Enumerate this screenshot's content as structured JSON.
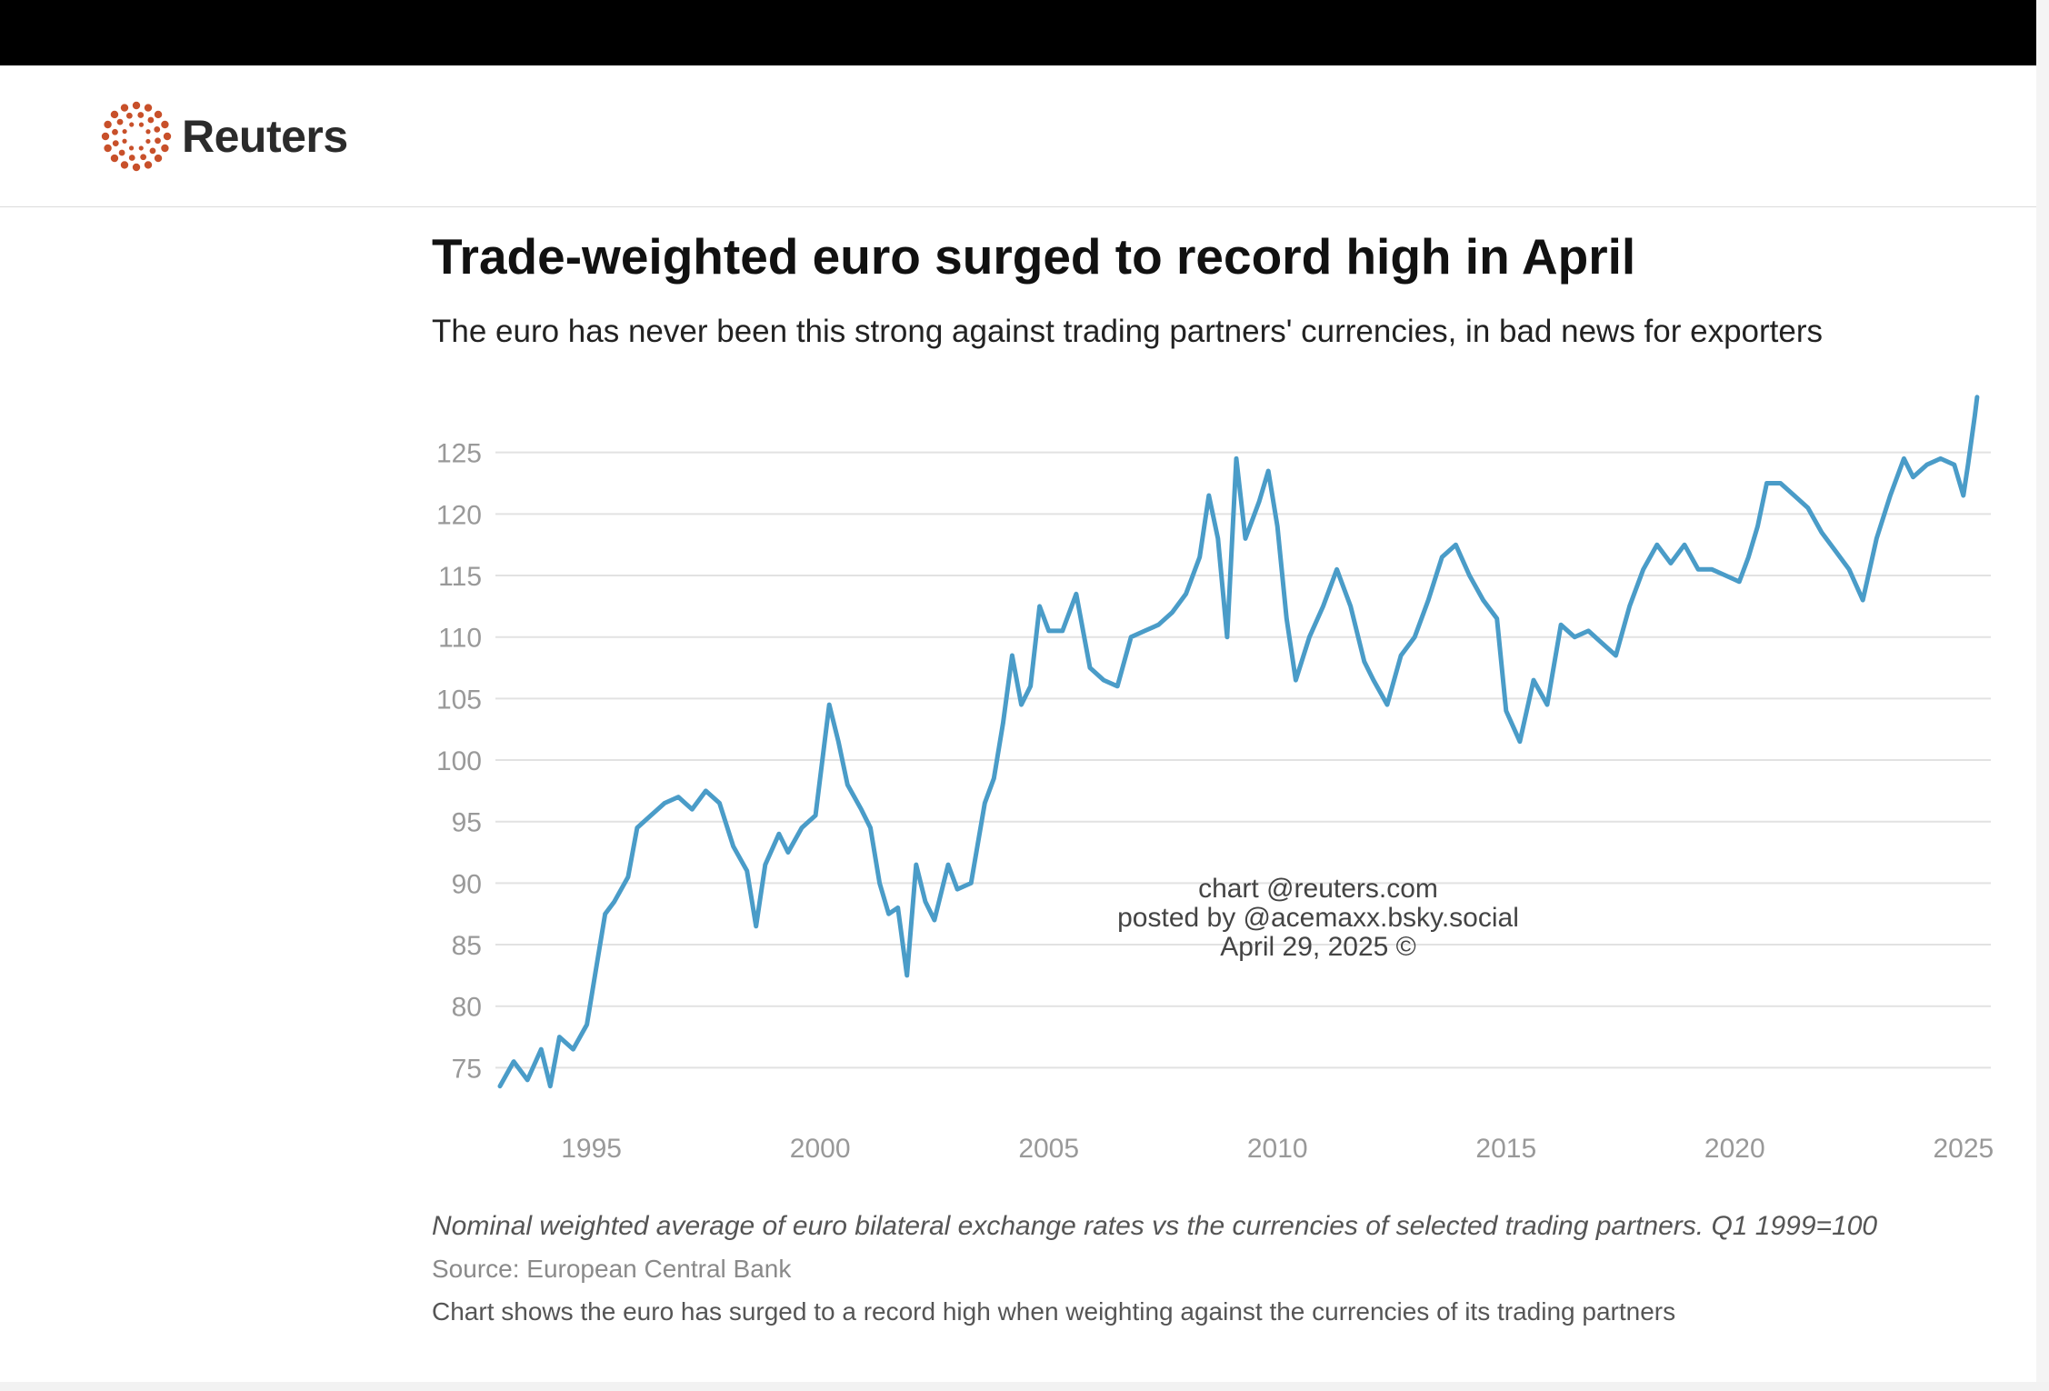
{
  "brand": {
    "name": "Reuters",
    "logo_color": "#c8502a"
  },
  "colors": {
    "line": "#4a9cc8",
    "grid": "#e2e2e2",
    "tick": "#999999"
  },
  "chart_data": {
    "type": "line",
    "title": "Trade-weighted euro surged to record high in April",
    "subtitle": "The euro has never been this strong against trading partners' currencies, in bad news for exporters",
    "xlabel": "",
    "ylabel": "",
    "x_ticks": [
      1995,
      2000,
      2005,
      2010,
      2015,
      2020,
      2025
    ],
    "y_ticks": [
      75,
      80,
      85,
      90,
      95,
      100,
      105,
      110,
      115,
      120,
      125
    ],
    "xlim": [
      1993.0,
      2025.5
    ],
    "ylim": [
      72,
      130
    ],
    "grid": "horizontal",
    "series": [
      {
        "values": [
          [
            1993.0,
            73.5
          ],
          [
            1993.3,
            75.5
          ],
          [
            1993.6,
            74.0
          ],
          [
            1993.9,
            76.5
          ],
          [
            1994.1,
            73.5
          ],
          [
            1994.3,
            77.5
          ],
          [
            1994.6,
            76.5
          ],
          [
            1994.9,
            78.5
          ],
          [
            1995.1,
            83.0
          ],
          [
            1995.3,
            87.5
          ],
          [
            1995.5,
            88.5
          ],
          [
            1995.8,
            90.5
          ],
          [
            1996.0,
            94.5
          ],
          [
            1996.3,
            95.5
          ],
          [
            1996.6,
            96.5
          ],
          [
            1996.9,
            97.0
          ],
          [
            1997.2,
            96.0
          ],
          [
            1997.5,
            97.5
          ],
          [
            1997.8,
            96.5
          ],
          [
            1998.1,
            93.0
          ],
          [
            1998.4,
            91.0
          ],
          [
            1998.6,
            86.5
          ],
          [
            1998.8,
            91.5
          ],
          [
            1999.1,
            94.0
          ],
          [
            1999.3,
            92.5
          ],
          [
            1999.6,
            94.5
          ],
          [
            1999.9,
            95.5
          ],
          [
            2000.2,
            104.5
          ],
          [
            2000.4,
            101.5
          ],
          [
            2000.6,
            98.0
          ],
          [
            2000.9,
            96.0
          ],
          [
            2001.1,
            94.5
          ],
          [
            2001.3,
            90.0
          ],
          [
            2001.5,
            87.5
          ],
          [
            2001.7,
            88.0
          ],
          [
            2001.9,
            82.5
          ],
          [
            2002.1,
            91.5
          ],
          [
            2002.3,
            88.5
          ],
          [
            2002.5,
            87.0
          ],
          [
            2002.8,
            91.5
          ],
          [
            2003.0,
            89.5
          ],
          [
            2003.3,
            90.0
          ],
          [
            2003.6,
            96.5
          ],
          [
            2003.8,
            98.5
          ],
          [
            2004.0,
            103.0
          ],
          [
            2004.2,
            108.5
          ],
          [
            2004.4,
            104.5
          ],
          [
            2004.6,
            106.0
          ],
          [
            2004.8,
            112.5
          ],
          [
            2005.0,
            110.5
          ],
          [
            2005.3,
            110.5
          ],
          [
            2005.6,
            113.5
          ],
          [
            2005.9,
            107.5
          ],
          [
            2006.2,
            106.5
          ],
          [
            2006.5,
            106.0
          ],
          [
            2006.8,
            110.0
          ],
          [
            2007.1,
            110.5
          ],
          [
            2007.4,
            111.0
          ],
          [
            2007.7,
            112.0
          ],
          [
            2008.0,
            113.5
          ],
          [
            2008.3,
            116.5
          ],
          [
            2008.5,
            121.5
          ],
          [
            2008.7,
            118.0
          ],
          [
            2008.9,
            110.0
          ],
          [
            2009.1,
            124.5
          ],
          [
            2009.3,
            118.0
          ],
          [
            2009.6,
            121.0
          ],
          [
            2009.8,
            123.5
          ],
          [
            2010.0,
            119.0
          ],
          [
            2010.2,
            111.5
          ],
          [
            2010.4,
            106.5
          ],
          [
            2010.7,
            110.0
          ],
          [
            2011.0,
            112.5
          ],
          [
            2011.3,
            115.5
          ],
          [
            2011.6,
            112.5
          ],
          [
            2011.9,
            108.0
          ],
          [
            2012.1,
            106.5
          ],
          [
            2012.4,
            104.5
          ],
          [
            2012.7,
            108.5
          ],
          [
            2013.0,
            110.0
          ],
          [
            2013.3,
            113.0
          ],
          [
            2013.6,
            116.5
          ],
          [
            2013.9,
            117.5
          ],
          [
            2014.2,
            115.0
          ],
          [
            2014.5,
            113.0
          ],
          [
            2014.8,
            111.5
          ],
          [
            2015.0,
            104.0
          ],
          [
            2015.3,
            101.5
          ],
          [
            2015.6,
            106.5
          ],
          [
            2015.9,
            104.5
          ],
          [
            2016.2,
            111.0
          ],
          [
            2016.5,
            110.0
          ],
          [
            2016.8,
            110.5
          ],
          [
            2017.1,
            109.5
          ],
          [
            2017.4,
            108.5
          ],
          [
            2017.7,
            112.5
          ],
          [
            2018.0,
            115.5
          ],
          [
            2018.3,
            117.5
          ],
          [
            2018.6,
            116.0
          ],
          [
            2018.9,
            117.5
          ],
          [
            2019.2,
            115.5
          ],
          [
            2019.5,
            115.5
          ],
          [
            2019.8,
            115.0
          ],
          [
            2020.1,
            114.5
          ],
          [
            2020.3,
            116.5
          ],
          [
            2020.5,
            119.0
          ],
          [
            2020.7,
            122.5
          ],
          [
            2021.0,
            122.5
          ],
          [
            2021.3,
            121.5
          ],
          [
            2021.6,
            120.5
          ],
          [
            2021.9,
            118.5
          ],
          [
            2022.2,
            117.0
          ],
          [
            2022.5,
            115.5
          ],
          [
            2022.8,
            113.0
          ],
          [
            2023.1,
            118.0
          ],
          [
            2023.4,
            121.5
          ],
          [
            2023.7,
            124.5
          ],
          [
            2023.9,
            123.0
          ],
          [
            2024.2,
            124.0
          ],
          [
            2024.5,
            124.5
          ],
          [
            2024.8,
            124.0
          ],
          [
            2025.0,
            121.5
          ],
          [
            2025.1,
            124.0
          ],
          [
            2025.25,
            128.0
          ],
          [
            2025.3,
            129.5
          ]
        ]
      }
    ]
  },
  "watermark": {
    "line1": "chart @reuters.com",
    "line2": "posted by @acemaxx.bsky.social",
    "line3": "April 29, 2025 ©"
  },
  "footer": {
    "note": "Nominal weighted average of euro bilateral exchange rates vs the currencies of selected trading partners. Q1 1999=100",
    "source": "Source: European Central Bank",
    "description": "Chart shows the euro has surged to a record high when weighting against the currencies of its trading partners"
  }
}
